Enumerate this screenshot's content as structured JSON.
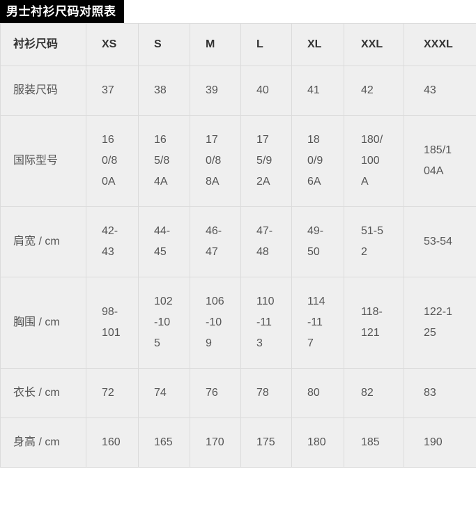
{
  "page": {
    "title": "男士衬衫尺码对照表"
  },
  "table": {
    "columns": [
      "衬衫尺码",
      "XS",
      "S",
      "M",
      "L",
      "XL",
      "XXL",
      "XXXL"
    ],
    "rows": [
      {
        "label": "服装尺码",
        "values": [
          "37",
          "38",
          "39",
          "40",
          "41",
          "42",
          "43"
        ]
      },
      {
        "label": "国际型号",
        "values": [
          "160/80A",
          "165/84A",
          "170/88A",
          "175/92A",
          "180/96A",
          "180/100A",
          "185/104A"
        ]
      },
      {
        "label": "肩宽 / cm",
        "values": [
          "42-43",
          "44-45",
          "46-47",
          "47-48",
          "49-50",
          "51-52",
          "53-54"
        ]
      },
      {
        "label": "胸围 / cm",
        "values": [
          "98-101",
          "102-105",
          "106-109",
          "110-113",
          "114-117",
          "118-121",
          "122-125"
        ]
      },
      {
        "label": "衣长 / cm",
        "values": [
          "72",
          "74",
          "76",
          "78",
          "80",
          "82",
          "83"
        ]
      },
      {
        "label": "身高 / cm",
        "values": [
          "160",
          "165",
          "170",
          "175",
          "180",
          "185",
          "190"
        ]
      }
    ]
  },
  "colors": {
    "page_bg": "#ffffff",
    "title_bar_bg": "#000000",
    "title_bar_text": "#ffffff",
    "table_bg": "#efefef",
    "border_color": "#dbdbdb",
    "header_text": "#333333",
    "cell_text": "#555555"
  }
}
